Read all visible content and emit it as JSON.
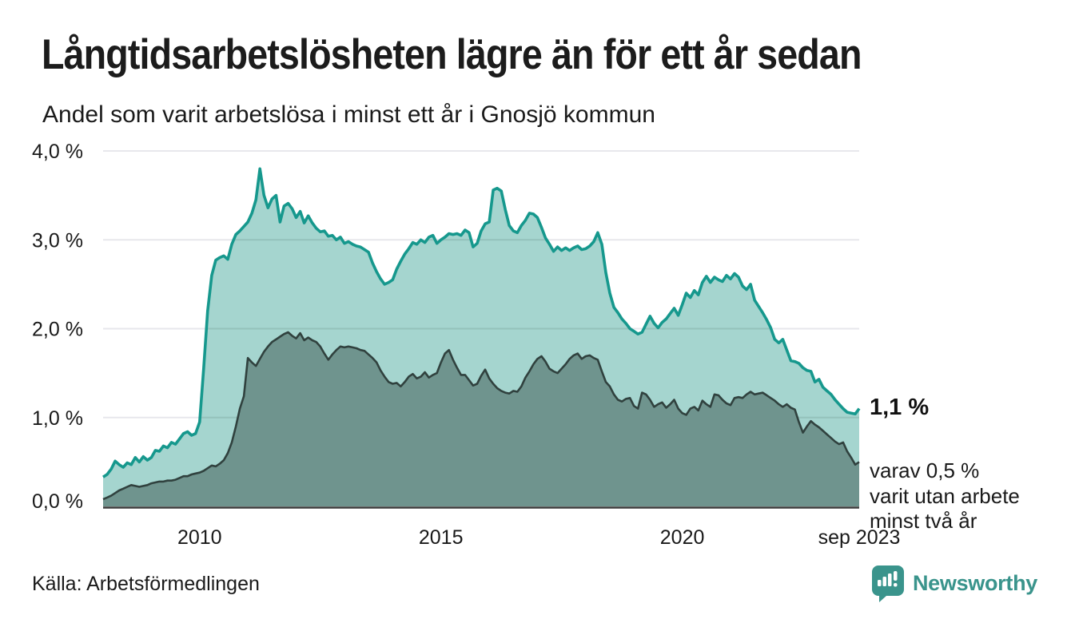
{
  "title": "Långtidsarbetslösheten lägre än för ett år sedan",
  "subtitle": "Andel som varit arbetslösa i minst ett år i Gnosjö kommun",
  "annotations": {
    "end_value": "1,1 %",
    "end_note": "varav 0,5 %\nvarit utan arbete\nminst två år"
  },
  "source": "Källa: Arbetsförmedlingen",
  "logo": {
    "text": "Newsworthy",
    "color": "#3a948c"
  },
  "chart_data": {
    "type": "area",
    "title": "Långtidsarbetslösheten lägre än för ett år sedan",
    "subtitle": "Andel som varit arbetslösa i minst ett år i Gnosjö kommun",
    "unit": "%",
    "frequency": "monthly",
    "x_start": "2008-01",
    "x_end": "2023-09",
    "ylim": [
      0,
      4
    ],
    "grid": true,
    "legend": "none",
    "y_ticks": [
      {
        "label": "0,0 %",
        "value": 0
      },
      {
        "label": "1,0 %",
        "value": 1
      },
      {
        "label": "2,0 %",
        "value": 2
      },
      {
        "label": "3,0 %",
        "value": 3
      },
      {
        "label": "4,0 %",
        "value": 4
      }
    ],
    "x_ticks": [
      {
        "label": "2010",
        "month_index": 24
      },
      {
        "label": "2015",
        "month_index": 84
      },
      {
        "label": "2020",
        "month_index": 144
      },
      {
        "label": "sep 2023",
        "month_index": 188
      }
    ],
    "series": [
      {
        "name": "Andel arbetslösa minst ett år",
        "color": "#16988d",
        "fill": "#a5d5cf",
        "end_label": "1,1 %",
        "values": [
          0.33,
          0.36,
          0.42,
          0.51,
          0.47,
          0.44,
          0.49,
          0.47,
          0.55,
          0.5,
          0.56,
          0.52,
          0.55,
          0.63,
          0.62,
          0.68,
          0.66,
          0.72,
          0.7,
          0.76,
          0.82,
          0.84,
          0.8,
          0.82,
          0.95,
          1.55,
          2.2,
          2.6,
          2.77,
          2.8,
          2.82,
          2.78,
          2.95,
          3.06,
          3.1,
          3.15,
          3.2,
          3.3,
          3.45,
          3.8,
          3.5,
          3.36,
          3.46,
          3.5,
          3.2,
          3.38,
          3.41,
          3.35,
          3.25,
          3.32,
          3.19,
          3.27,
          3.19,
          3.13,
          3.09,
          3.1,
          3.04,
          3.05,
          3.0,
          3.03,
          2.96,
          2.98,
          2.95,
          2.93,
          2.92,
          2.89,
          2.86,
          2.74,
          2.64,
          2.56,
          2.5,
          2.52,
          2.55,
          2.67,
          2.76,
          2.84,
          2.9,
          2.97,
          2.95,
          3.0,
          2.97,
          3.03,
          3.05,
          2.96,
          3.0,
          3.03,
          3.07,
          3.06,
          3.07,
          3.05,
          3.11,
          3.08,
          2.92,
          2.96,
          3.1,
          3.18,
          3.2,
          3.56,
          3.58,
          3.55,
          3.34,
          3.16,
          3.1,
          3.08,
          3.16,
          3.22,
          3.3,
          3.29,
          3.25,
          3.14,
          3.02,
          2.95,
          2.87,
          2.92,
          2.88,
          2.91,
          2.88,
          2.91,
          2.93,
          2.89,
          2.9,
          2.93,
          2.98,
          3.08,
          2.95,
          2.63,
          2.4,
          2.24,
          2.18,
          2.11,
          2.06,
          2.0,
          1.97,
          1.94,
          1.96,
          2.05,
          2.14,
          2.06,
          2.01,
          2.07,
          2.11,
          2.17,
          2.23,
          2.15,
          2.27,
          2.4,
          2.35,
          2.43,
          2.38,
          2.52,
          2.59,
          2.52,
          2.58,
          2.55,
          2.53,
          2.6,
          2.56,
          2.62,
          2.58,
          2.48,
          2.44,
          2.5,
          2.32,
          2.25,
          2.18,
          2.1,
          2.01,
          1.88,
          1.84,
          1.88,
          1.76,
          1.64,
          1.63,
          1.61,
          1.56,
          1.53,
          1.52,
          1.4,
          1.43,
          1.34,
          1.3,
          1.26,
          1.2,
          1.15,
          1.1,
          1.06,
          1.05,
          1.04,
          1.1
        ]
      },
      {
        "name": "varav arbetslösa minst två år",
        "color": "#30413e",
        "fill": "#6f948e",
        "end_label": "0,5 %",
        "values": [
          0.08,
          0.1,
          0.12,
          0.15,
          0.18,
          0.2,
          0.22,
          0.24,
          0.23,
          0.22,
          0.23,
          0.24,
          0.26,
          0.27,
          0.28,
          0.28,
          0.29,
          0.29,
          0.3,
          0.32,
          0.34,
          0.34,
          0.36,
          0.37,
          0.38,
          0.4,
          0.43,
          0.46,
          0.45,
          0.48,
          0.52,
          0.6,
          0.72,
          0.9,
          1.1,
          1.24,
          1.67,
          1.62,
          1.58,
          1.66,
          1.74,
          1.8,
          1.85,
          1.88,
          1.91,
          1.94,
          1.96,
          1.92,
          1.89,
          1.95,
          1.87,
          1.9,
          1.87,
          1.85,
          1.8,
          1.72,
          1.65,
          1.71,
          1.76,
          1.8,
          1.79,
          1.8,
          1.79,
          1.78,
          1.76,
          1.75,
          1.71,
          1.67,
          1.62,
          1.53,
          1.46,
          1.4,
          1.38,
          1.39,
          1.35,
          1.4,
          1.46,
          1.49,
          1.44,
          1.46,
          1.51,
          1.45,
          1.48,
          1.5,
          1.62,
          1.72,
          1.76,
          1.65,
          1.56,
          1.48,
          1.48,
          1.42,
          1.36,
          1.38,
          1.47,
          1.54,
          1.44,
          1.38,
          1.33,
          1.3,
          1.28,
          1.27,
          1.3,
          1.29,
          1.35,
          1.45,
          1.52,
          1.6,
          1.66,
          1.69,
          1.63,
          1.55,
          1.52,
          1.5,
          1.55,
          1.6,
          1.66,
          1.7,
          1.72,
          1.66,
          1.69,
          1.7,
          1.67,
          1.65,
          1.52,
          1.4,
          1.35,
          1.26,
          1.2,
          1.18,
          1.21,
          1.22,
          1.13,
          1.1,
          1.28,
          1.26,
          1.2,
          1.12,
          1.15,
          1.17,
          1.11,
          1.15,
          1.2,
          1.1,
          1.05,
          1.03,
          1.1,
          1.12,
          1.08,
          1.19,
          1.15,
          1.12,
          1.26,
          1.25,
          1.2,
          1.16,
          1.14,
          1.22,
          1.23,
          1.22,
          1.26,
          1.29,
          1.26,
          1.27,
          1.28,
          1.25,
          1.22,
          1.19,
          1.15,
          1.12,
          1.15,
          1.11,
          1.09,
          0.95,
          0.83,
          0.9,
          0.96,
          0.92,
          0.89,
          0.85,
          0.81,
          0.77,
          0.73,
          0.7,
          0.72,
          0.62,
          0.55,
          0.47,
          0.5
        ]
      }
    ]
  }
}
